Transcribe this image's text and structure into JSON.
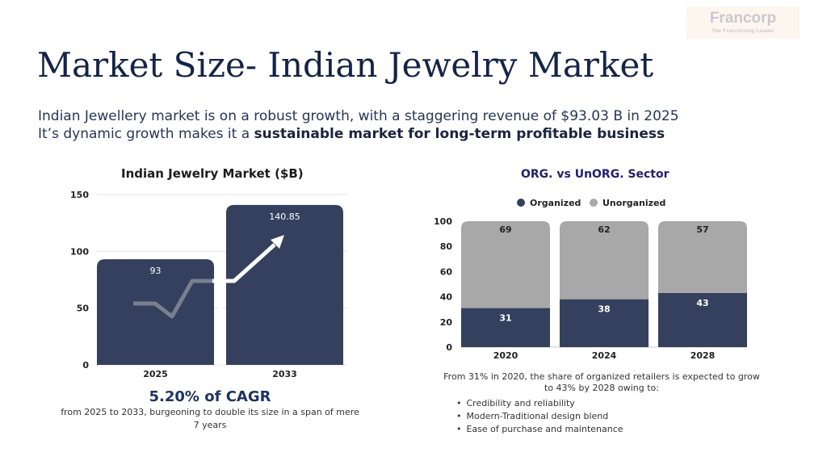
{
  "logo": {
    "name": "Francorp",
    "tagline": "The Franchising Leader"
  },
  "title": "Market Size- Indian Jewelry Market",
  "subtitle": {
    "line1": "Indian Jewellery market is on a robust growth, with a staggering revenue of $93.03 B in 2025",
    "line2_prefix": "It’s dynamic growth makes it a ",
    "line2_bold": "sustainable market for long-term profitable business"
  },
  "cagr": {
    "headline": "5.20% of CAGR",
    "note": "from 2025 to 2033, burgeoning to double its  size in a span of mere 7 years"
  },
  "org_note": "From 31% in 2020, the share of organized retailers is expected to grow to 43% by 2028 owing to:",
  "bullets": [
    "Credibility and reliability",
    "Modern-Traditional design blend",
    "Ease of purchase and maintenance"
  ],
  "colors": {
    "navy": "#34405e",
    "grey": "#a8a8a8",
    "title": "#142447",
    "accent": "#22206e"
  },
  "chart_data": [
    {
      "type": "bar",
      "title": "Indian Jewelry Market ($B)",
      "categories": [
        "2025",
        "2033"
      ],
      "values": [
        93,
        140.85
      ],
      "ylim": [
        0,
        150
      ],
      "yticks": [
        "0",
        "50",
        "100",
        "150"
      ],
      "grid": true,
      "annotation": "upward-arrow-icon"
    },
    {
      "type": "bar",
      "stacked": true,
      "title": "ORG. vs UnORG. Sector",
      "categories": [
        "2020",
        "2024",
        "2028"
      ],
      "series": [
        {
          "name": "Organized",
          "values": [
            31,
            38,
            43
          ],
          "color": "#34405e"
        },
        {
          "name": "Unorganized",
          "values": [
            69,
            62,
            57
          ],
          "color": "#a8a8a8"
        }
      ],
      "ylim": [
        0,
        100
      ],
      "yticks": [
        "0",
        "20",
        "40",
        "60",
        "80",
        "100"
      ],
      "legend": "top"
    }
  ]
}
